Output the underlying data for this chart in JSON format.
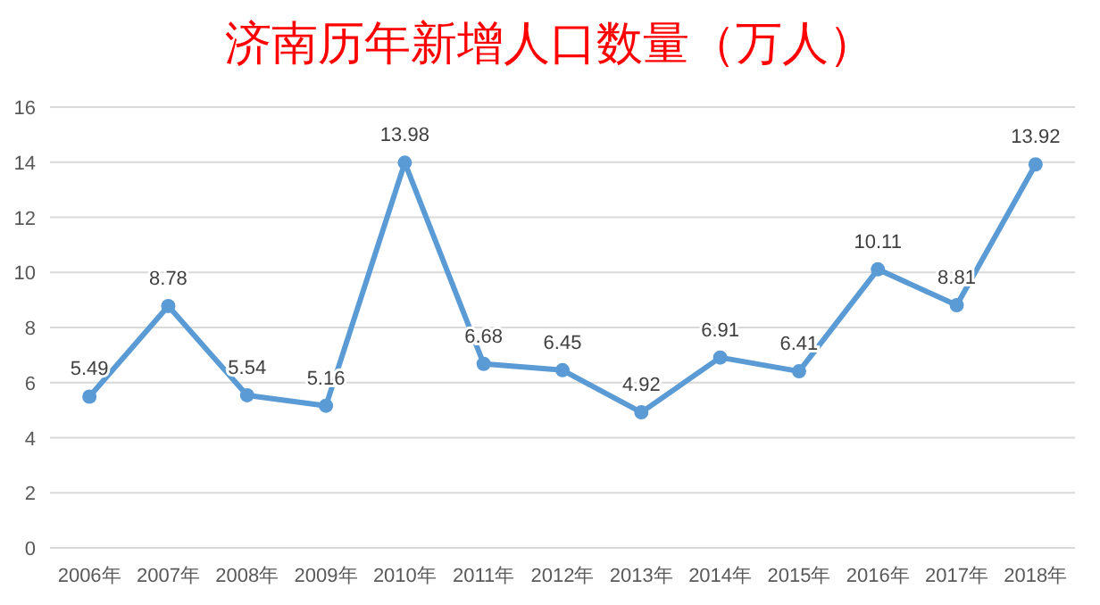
{
  "chart_data": {
    "type": "line",
    "title": "济南历年新增人口数量（万人）",
    "categories": [
      "2006年",
      "2007年",
      "2008年",
      "2009年",
      "2010年",
      "2011年",
      "2012年",
      "2013年",
      "2014年",
      "2015年",
      "2016年",
      "2017年",
      "2018年"
    ],
    "series": [
      {
        "color": "#5b9bd5",
        "values": [
          5.49,
          8.78,
          5.54,
          5.16,
          13.98,
          6.68,
          6.45,
          4.92,
          6.91,
          6.41,
          10.11,
          8.81,
          13.92
        ]
      }
    ],
    "ylim": [
      0,
      16
    ],
    "yticks": [
      0,
      2,
      4,
      6,
      8,
      10,
      12,
      14,
      16
    ],
    "grid": "y",
    "marker": "circle",
    "line_style": "solid",
    "data_labels": true
  }
}
